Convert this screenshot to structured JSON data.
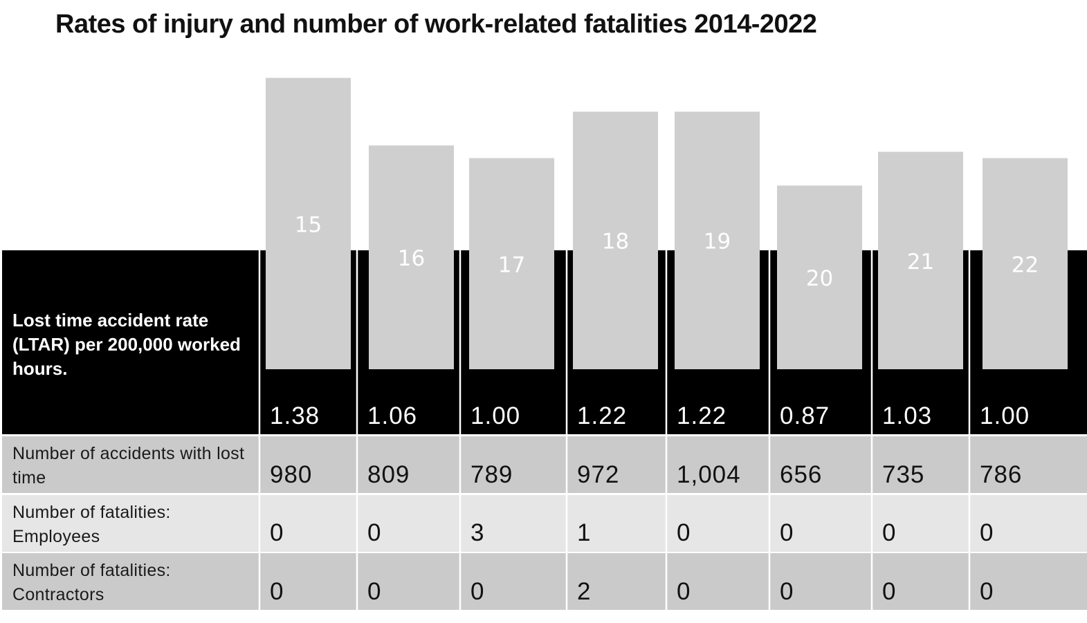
{
  "title": "Rates of injury and number of work-related fatalities 2014-2022",
  "colors": {
    "header_band": "#000000",
    "bar_fill": "#d0cfd0",
    "row_dark": "#cbcacb",
    "row_light": "#e6e6e6",
    "separator": "#ffffff"
  },
  "rows": {
    "ltar_label": "Lost time accident rate (LTAR) per 200,000 worked hours.",
    "accidents_label": "Number of accidents with lost time",
    "fatal_emp_label": "Number of fatalities: Employees",
    "fatal_con_label": "Number of fatalities: Contractors"
  },
  "chart_data": {
    "type": "bar",
    "title": "Rates of injury and number of work-related fatalities 2014-2022",
    "categories": [
      "15",
      "16",
      "17",
      "18",
      "19",
      "20",
      "21",
      "22"
    ],
    "ylim": [
      0,
      1.5
    ],
    "series": [
      {
        "name": "Lost time accident rate (LTAR) per 200,000 worked hours.",
        "values": [
          1.38,
          1.06,
          1.0,
          1.22,
          1.22,
          0.87,
          1.03,
          1.0
        ],
        "labels": [
          "1.38",
          "1.06",
          "1.00",
          "1.22",
          "1.22",
          "0.87",
          "1.03",
          "1.00"
        ]
      }
    ],
    "table": {
      "accidents": [
        "980",
        "809",
        "789",
        "972",
        "1,004",
        "656",
        "735",
        "786"
      ],
      "fatalities_employees": [
        "0",
        "0",
        "3",
        "1",
        "0",
        "0",
        "0",
        "0"
      ],
      "fatalities_contractors": [
        "0",
        "0",
        "0",
        "2",
        "0",
        "0",
        "0",
        "0"
      ]
    }
  }
}
